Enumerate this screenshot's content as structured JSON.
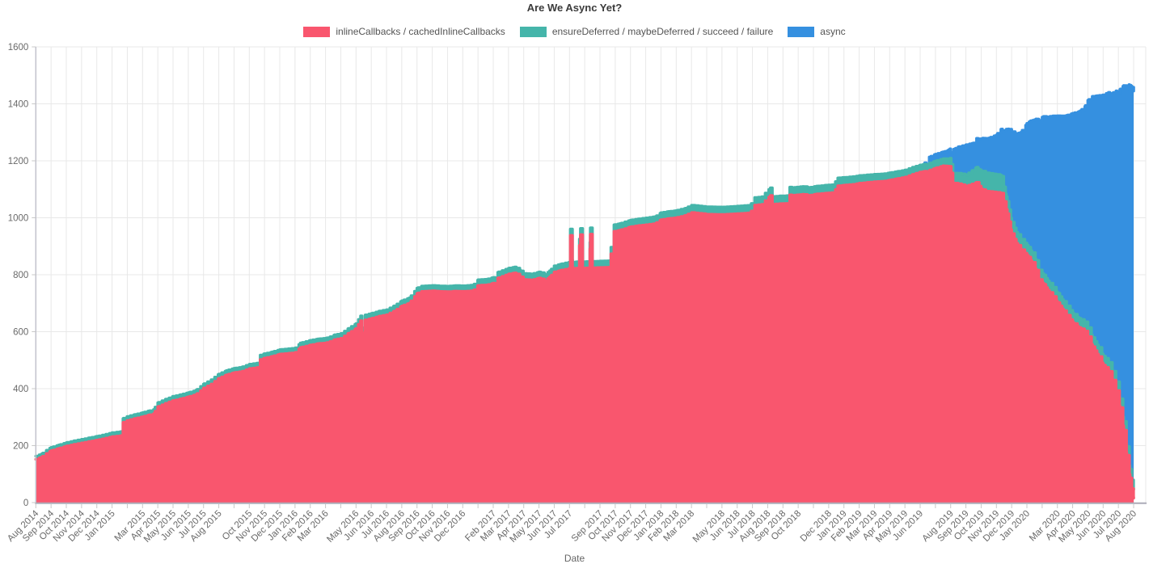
{
  "title": "Are We Async Yet?",
  "legend": [
    {
      "label": "inlineCallbacks / cachedInlineCallbacks",
      "color": "#F9566E"
    },
    {
      "label": "ensureDeferred / maybeDeferred / succeed / failure",
      "color": "#45B5AA"
    },
    {
      "label": "async",
      "color": "#3590E0"
    }
  ],
  "axis_colors": {
    "grid": "#E8E8E8",
    "axis_line": "#ACACB8",
    "tick": "#C8C8C8",
    "tick_label": "#696969"
  },
  "chart_data": {
    "type": "area",
    "stacked": true,
    "title": "Are We Async Yet?",
    "xlabel": "Date",
    "ylabel": "",
    "ylim": [
      0,
      1600
    ],
    "y_ticks": [
      0,
      200,
      400,
      600,
      800,
      1000,
      1200,
      1400,
      1600
    ],
    "grid": true,
    "legend_position": "top",
    "x_unit": "t = months since Aug 2014 (0 = Aug 2014, 72 = Aug 2020)",
    "x_range": [
      0,
      72
    ],
    "x_tick_labels": [
      [
        0,
        "Aug 2014"
      ],
      [
        1,
        "Sep 2014"
      ],
      [
        2,
        "Oct 2014"
      ],
      [
        3,
        "Nov 2014"
      ],
      [
        4,
        "Dec 2014"
      ],
      [
        5,
        "Jan 2015"
      ],
      [
        7,
        "Mar 2015"
      ],
      [
        8,
        "Apr 2015"
      ],
      [
        9,
        "May 2015"
      ],
      [
        10,
        "Jun 2015"
      ],
      [
        11,
        "Jul 2015"
      ],
      [
        12,
        "Aug 2015"
      ],
      [
        14,
        "Oct 2015"
      ],
      [
        15,
        "Nov 2015"
      ],
      [
        16,
        "Dec 2015"
      ],
      [
        17,
        "Jan 2016"
      ],
      [
        18,
        "Feb 2016"
      ],
      [
        19,
        "Mar 2016"
      ],
      [
        21,
        "May 2016"
      ],
      [
        22,
        "Jun 2016"
      ],
      [
        23,
        "Jul 2016"
      ],
      [
        24,
        "Aug 2016"
      ],
      [
        25,
        "Sep 2016"
      ],
      [
        26,
        "Oct 2016"
      ],
      [
        27,
        "Nov 2016"
      ],
      [
        28,
        "Dec 2016"
      ],
      [
        30,
        "Feb 2017"
      ],
      [
        31,
        "Mar 2017"
      ],
      [
        32,
        "Apr 2017"
      ],
      [
        33,
        "May 2017"
      ],
      [
        34,
        "Jun 2017"
      ],
      [
        35,
        "Jul 2017"
      ],
      [
        37,
        "Sep 2017"
      ],
      [
        38,
        "Oct 2017"
      ],
      [
        39,
        "Nov 2017"
      ],
      [
        40,
        "Dec 2017"
      ],
      [
        41,
        "Jan 2018"
      ],
      [
        42,
        "Feb 2018"
      ],
      [
        43,
        "Mar 2018"
      ],
      [
        45,
        "May 2018"
      ],
      [
        46,
        "Jun 2018"
      ],
      [
        47,
        "Jul 2018"
      ],
      [
        48,
        "Aug 2018"
      ],
      [
        49,
        "Sep 2018"
      ],
      [
        50,
        "Oct 2018"
      ],
      [
        52,
        "Dec 2018"
      ],
      [
        53,
        "Jan 2019"
      ],
      [
        54,
        "Feb 2019"
      ],
      [
        55,
        "Mar 2019"
      ],
      [
        56,
        "Apr 2019"
      ],
      [
        57,
        "May 2019"
      ],
      [
        58,
        "Jun 2019"
      ],
      [
        60,
        "Aug 2019"
      ],
      [
        61,
        "Sep 2019"
      ],
      [
        62,
        "Oct 2019"
      ],
      [
        63,
        "Nov 2019"
      ],
      [
        64,
        "Dec 2019"
      ],
      [
        65,
        "Jan 2020"
      ],
      [
        67,
        "Mar 2020"
      ],
      [
        68,
        "Apr 2020"
      ],
      [
        69,
        "May 2020"
      ],
      [
        70,
        "Jun 2020"
      ],
      [
        71,
        "Jul 2020"
      ],
      [
        72,
        "Aug 2020"
      ]
    ],
    "months_gridlines": 73,
    "series": [
      {
        "name": "inlineCallbacks / cachedInlineCallbacks",
        "color": "#F9566E",
        "role": "bottom layer (absolute count)",
        "points": [
          [
            0,
            152
          ],
          [
            0.4,
            160
          ],
          [
            0.7,
            172
          ],
          [
            1,
            182
          ],
          [
            1.5,
            190
          ],
          [
            2,
            198
          ],
          [
            2.5,
            204
          ],
          [
            3,
            209
          ],
          [
            3.5,
            214
          ],
          [
            4,
            219
          ],
          [
            4.6,
            226
          ],
          [
            5,
            231
          ],
          [
            5.6,
            235
          ],
          [
            5.72,
            281
          ],
          [
            6,
            288
          ],
          [
            6.5,
            295
          ],
          [
            7,
            301
          ],
          [
            7.45,
            308
          ],
          [
            7.58,
            276
          ],
          [
            7.72,
            312
          ],
          [
            8,
            336
          ],
          [
            8.5,
            348
          ],
          [
            9,
            358
          ],
          [
            9.5,
            364
          ],
          [
            10,
            371
          ],
          [
            10.5,
            379
          ],
          [
            11,
            401
          ],
          [
            11.5,
            416
          ],
          [
            12,
            436
          ],
          [
            12.5,
            448
          ],
          [
            13,
            456
          ],
          [
            13.5,
            460
          ],
          [
            14,
            470
          ],
          [
            14.55,
            474
          ],
          [
            14.72,
            502
          ],
          [
            15,
            507
          ],
          [
            15.5,
            513
          ],
          [
            16,
            521
          ],
          [
            16.6,
            524
          ],
          [
            17,
            526
          ],
          [
            17.35,
            544
          ],
          [
            18,
            553
          ],
          [
            18.5,
            558
          ],
          [
            19,
            560
          ],
          [
            19.3,
            565
          ],
          [
            19.6,
            572
          ],
          [
            20,
            576
          ],
          [
            20.5,
            594
          ],
          [
            21,
            611
          ],
          [
            21.3,
            638
          ],
          [
            21.45,
            568
          ],
          [
            21.6,
            641
          ],
          [
            22,
            646
          ],
          [
            22.5,
            654
          ],
          [
            23,
            659
          ],
          [
            23.5,
            672
          ],
          [
            24,
            690
          ],
          [
            24.5,
            700
          ],
          [
            25,
            734
          ],
          [
            25.3,
            741
          ],
          [
            26,
            743
          ],
          [
            26.5,
            741
          ],
          [
            27,
            740
          ],
          [
            27.5,
            742
          ],
          [
            28,
            741
          ],
          [
            28.7,
            744
          ],
          [
            29,
            762
          ],
          [
            29.6,
            764
          ],
          [
            30,
            770
          ],
          [
            30.15,
            748
          ],
          [
            30.3,
            788
          ],
          [
            31,
            802
          ],
          [
            31.4,
            806
          ],
          [
            31.8,
            792
          ],
          [
            32,
            783
          ],
          [
            32.5,
            781
          ],
          [
            33,
            788
          ],
          [
            33.4,
            779
          ],
          [
            33.7,
            792
          ],
          [
            34,
            809
          ],
          [
            34.4,
            815
          ],
          [
            35,
            822
          ],
          [
            35.06,
            938
          ],
          [
            35.2,
            822
          ],
          [
            35.5,
            823
          ],
          [
            35.72,
            940
          ],
          [
            35.86,
            823
          ],
          [
            36.3,
            824
          ],
          [
            36.37,
            942
          ],
          [
            36.5,
            824
          ],
          [
            37,
            825
          ],
          [
            37.6,
            826
          ],
          [
            37.92,
            952
          ],
          [
            38.3,
            956
          ],
          [
            39,
            968
          ],
          [
            39.5,
            972
          ],
          [
            40,
            975
          ],
          [
            40.6,
            979
          ],
          [
            41,
            993
          ],
          [
            41.5,
            997
          ],
          [
            42,
            1000
          ],
          [
            42.6,
            1008
          ],
          [
            43,
            1018
          ],
          [
            43.5,
            1015
          ],
          [
            44,
            1012
          ],
          [
            45,
            1011
          ],
          [
            46,
            1014
          ],
          [
            46.85,
            1017
          ],
          [
            47.15,
            1044
          ],
          [
            47.6,
            1046
          ],
          [
            48.18,
            1078
          ],
          [
            48.32,
            1047
          ],
          [
            48.8,
            1049
          ],
          [
            49.3,
            1050
          ],
          [
            49.45,
            1080
          ],
          [
            49.6,
            1051
          ],
          [
            49.75,
            1079
          ],
          [
            50.3,
            1082
          ],
          [
            50.7,
            1078
          ],
          [
            51.2,
            1083
          ],
          [
            51.8,
            1086
          ],
          [
            52.3,
            1088
          ],
          [
            52.6,
            1112
          ],
          [
            53,
            1114
          ],
          [
            53.6,
            1117
          ],
          [
            54,
            1121
          ],
          [
            54.6,
            1124
          ],
          [
            55,
            1126
          ],
          [
            55.6,
            1128
          ],
          [
            56,
            1132
          ],
          [
            56.5,
            1137
          ],
          [
            57,
            1142
          ],
          [
            57.5,
            1152
          ],
          [
            58,
            1160
          ],
          [
            58.3,
            1163
          ],
          [
            58.45,
            1140
          ],
          [
            58.6,
            1166
          ],
          [
            59,
            1174
          ],
          [
            59.5,
            1182
          ],
          [
            59.95,
            1180
          ],
          [
            60.15,
            1122
          ],
          [
            60.5,
            1119
          ],
          [
            61,
            1111
          ],
          [
            61.4,
            1118
          ],
          [
            61.7,
            1124
          ],
          [
            62,
            1101
          ],
          [
            62.3,
            1093
          ],
          [
            63,
            1089
          ],
          [
            63.35,
            1086
          ],
          [
            63.5,
            1057
          ],
          [
            63.65,
            1029
          ],
          [
            63.82,
            986
          ],
          [
            64,
            944
          ],
          [
            64.3,
            910
          ],
          [
            64.6,
            889
          ],
          [
            65,
            868
          ],
          [
            65.25,
            850
          ],
          [
            65.6,
            816
          ],
          [
            65.78,
            783
          ],
          [
            66.1,
            766
          ],
          [
            66.35,
            745
          ],
          [
            66.7,
            723
          ],
          [
            67,
            702
          ],
          [
            67.3,
            680
          ],
          [
            67.6,
            659
          ],
          [
            68,
            632
          ],
          [
            68.4,
            614
          ],
          [
            68.8,
            602
          ],
          [
            69,
            582
          ],
          [
            69.3,
            547
          ],
          [
            69.6,
            521
          ],
          [
            70,
            482
          ],
          [
            70.35,
            464
          ],
          [
            70.6,
            431
          ],
          [
            70.85,
            393
          ],
          [
            71.1,
            333
          ],
          [
            71.35,
            254
          ],
          [
            71.55,
            166
          ],
          [
            71.72,
            99
          ],
          [
            71.88,
            49
          ],
          [
            72,
            16
          ]
        ]
      },
      {
        "name": "ensureDeferred / maybeDeferred / succeed / failure",
        "color": "#45B5AA",
        "role": "layer thickness stacked on previous",
        "points": [
          [
            0,
            11
          ],
          [
            5,
            14
          ],
          [
            17,
            16
          ],
          [
            29,
            20
          ],
          [
            38,
            23
          ],
          [
            44,
            26
          ],
          [
            52,
            28
          ],
          [
            57,
            25
          ],
          [
            59.8,
            25
          ],
          [
            60.2,
            35
          ],
          [
            61,
            40
          ],
          [
            61.8,
            55
          ],
          [
            62.1,
            65
          ],
          [
            63.3,
            62
          ],
          [
            63.6,
            45
          ],
          [
            64,
            40
          ],
          [
            65,
            35
          ],
          [
            66,
            33
          ],
          [
            70,
            32
          ],
          [
            72,
            30
          ]
        ]
      },
      {
        "name": "async",
        "color": "#3590E0",
        "role": "layer thickness stacked on previous",
        "t_start": 58.25,
        "points": [
          [
            58.25,
            0
          ],
          [
            58.4,
            14
          ],
          [
            58.6,
            22
          ],
          [
            59,
            24
          ],
          [
            59.5,
            24
          ],
          [
            60,
            34
          ],
          [
            60.2,
            84
          ],
          [
            60.5,
            93
          ],
          [
            61,
            105
          ],
          [
            61.5,
            93
          ],
          [
            62,
            114
          ],
          [
            62.5,
            124
          ],
          [
            63,
            139
          ],
          [
            63.4,
            170
          ],
          [
            63.8,
            278
          ],
          [
            64,
            318
          ],
          [
            64.6,
            374
          ],
          [
            65,
            428
          ],
          [
            65.5,
            484
          ],
          [
            66,
            549
          ],
          [
            66.5,
            587
          ],
          [
            67,
            623
          ],
          [
            67.5,
            659
          ],
          [
            68,
            702
          ],
          [
            68.5,
            732
          ],
          [
            68.8,
            756
          ],
          [
            69,
            798
          ],
          [
            69.3,
            847
          ],
          [
            69.6,
            875
          ],
          [
            70,
            917
          ],
          [
            70.5,
            956
          ],
          [
            71,
            1049
          ],
          [
            71.3,
            1161
          ],
          [
            71.55,
            1254
          ],
          [
            71.7,
            1330
          ],
          [
            71.85,
            1374
          ],
          [
            72,
            1399
          ]
        ]
      }
    ]
  }
}
